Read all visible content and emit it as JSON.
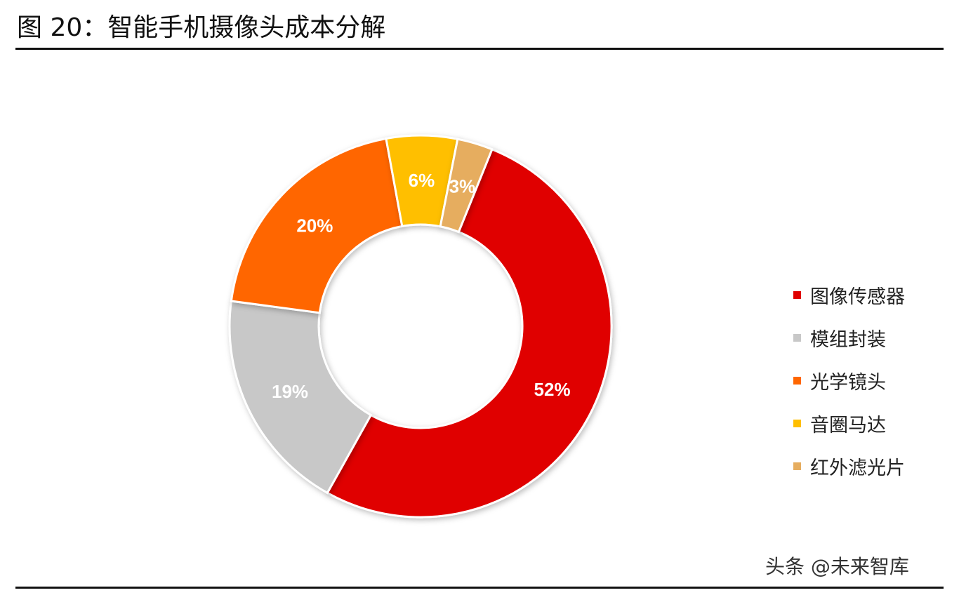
{
  "figure": {
    "title": "图 20：智能手机摄像头成本分解"
  },
  "watermark": "头条 @未来智库",
  "chart_data": {
    "type": "pie",
    "donut": true,
    "title": "",
    "legend_position": "right",
    "categories": [
      "图像传感器",
      "模组封装",
      "光学镜头",
      "音圈马达",
      "红外滤光片"
    ],
    "values": [
      52,
      19,
      20,
      6,
      3
    ],
    "labels": [
      "52%",
      "19%",
      "20%",
      "6%",
      "3%"
    ],
    "colors": [
      "#e00000",
      "#c8c8c8",
      "#ff6600",
      "#ffbf00",
      "#e6ad5f"
    ],
    "label_colors": [
      "#ffffff",
      "#ffffff",
      "#ffffff",
      "#ffffff",
      "#ffffff"
    ],
    "start_angle_deg": 22,
    "direction": "clockwise"
  }
}
